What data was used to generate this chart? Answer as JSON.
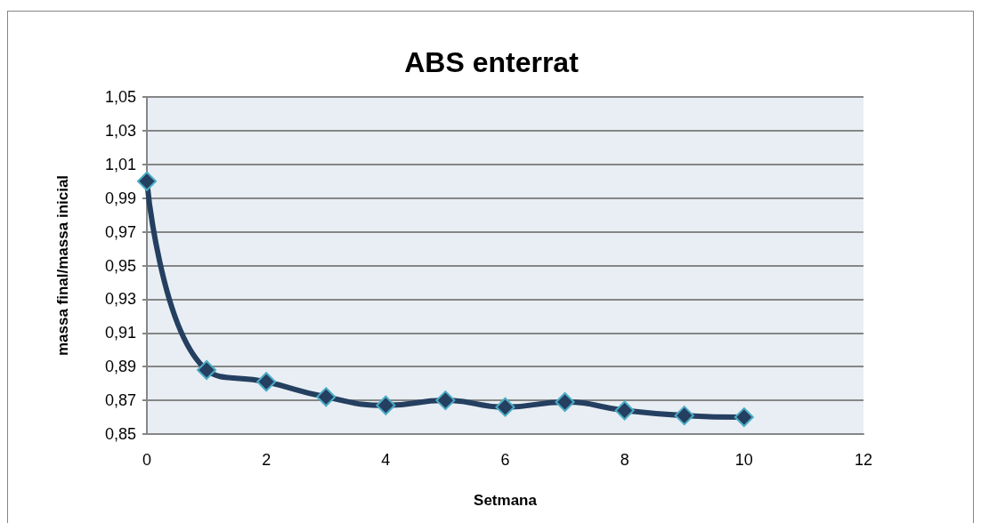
{
  "chart_data": {
    "type": "line",
    "title": "ABS enterrat",
    "xlabel": "Setmana",
    "ylabel": "massa final/massa inicial",
    "x": [
      0,
      1,
      2,
      3,
      4,
      5,
      6,
      7,
      8,
      9,
      10
    ],
    "series": [
      {
        "color": "#243f60",
        "values": [
          1.0,
          0.888,
          0.881,
          0.872,
          0.867,
          0.87,
          0.866,
          0.869,
          0.864,
          0.861,
          0.86
        ]
      }
    ],
    "xlim": [
      0,
      12
    ],
    "xticks": [
      0,
      2,
      4,
      6,
      8,
      10,
      12
    ],
    "ylim": [
      0.85,
      1.05
    ],
    "yticks": [
      {
        "value": 0.85,
        "label": "0,85"
      },
      {
        "value": 0.87,
        "label": "0,87"
      },
      {
        "value": 0.89,
        "label": "0,89"
      },
      {
        "value": 0.91,
        "label": "0,91"
      },
      {
        "value": 0.93,
        "label": "0,93"
      },
      {
        "value": 0.95,
        "label": "0,95"
      },
      {
        "value": 0.97,
        "label": "0,97"
      },
      {
        "value": 0.99,
        "label": "0,99"
      },
      {
        "value": 1.01,
        "label": "1,01"
      },
      {
        "value": 1.03,
        "label": "1,03"
      },
      {
        "value": 1.05,
        "label": "1,05"
      }
    ],
    "grid": "y",
    "marker": "diamond",
    "line_style": "solid"
  }
}
